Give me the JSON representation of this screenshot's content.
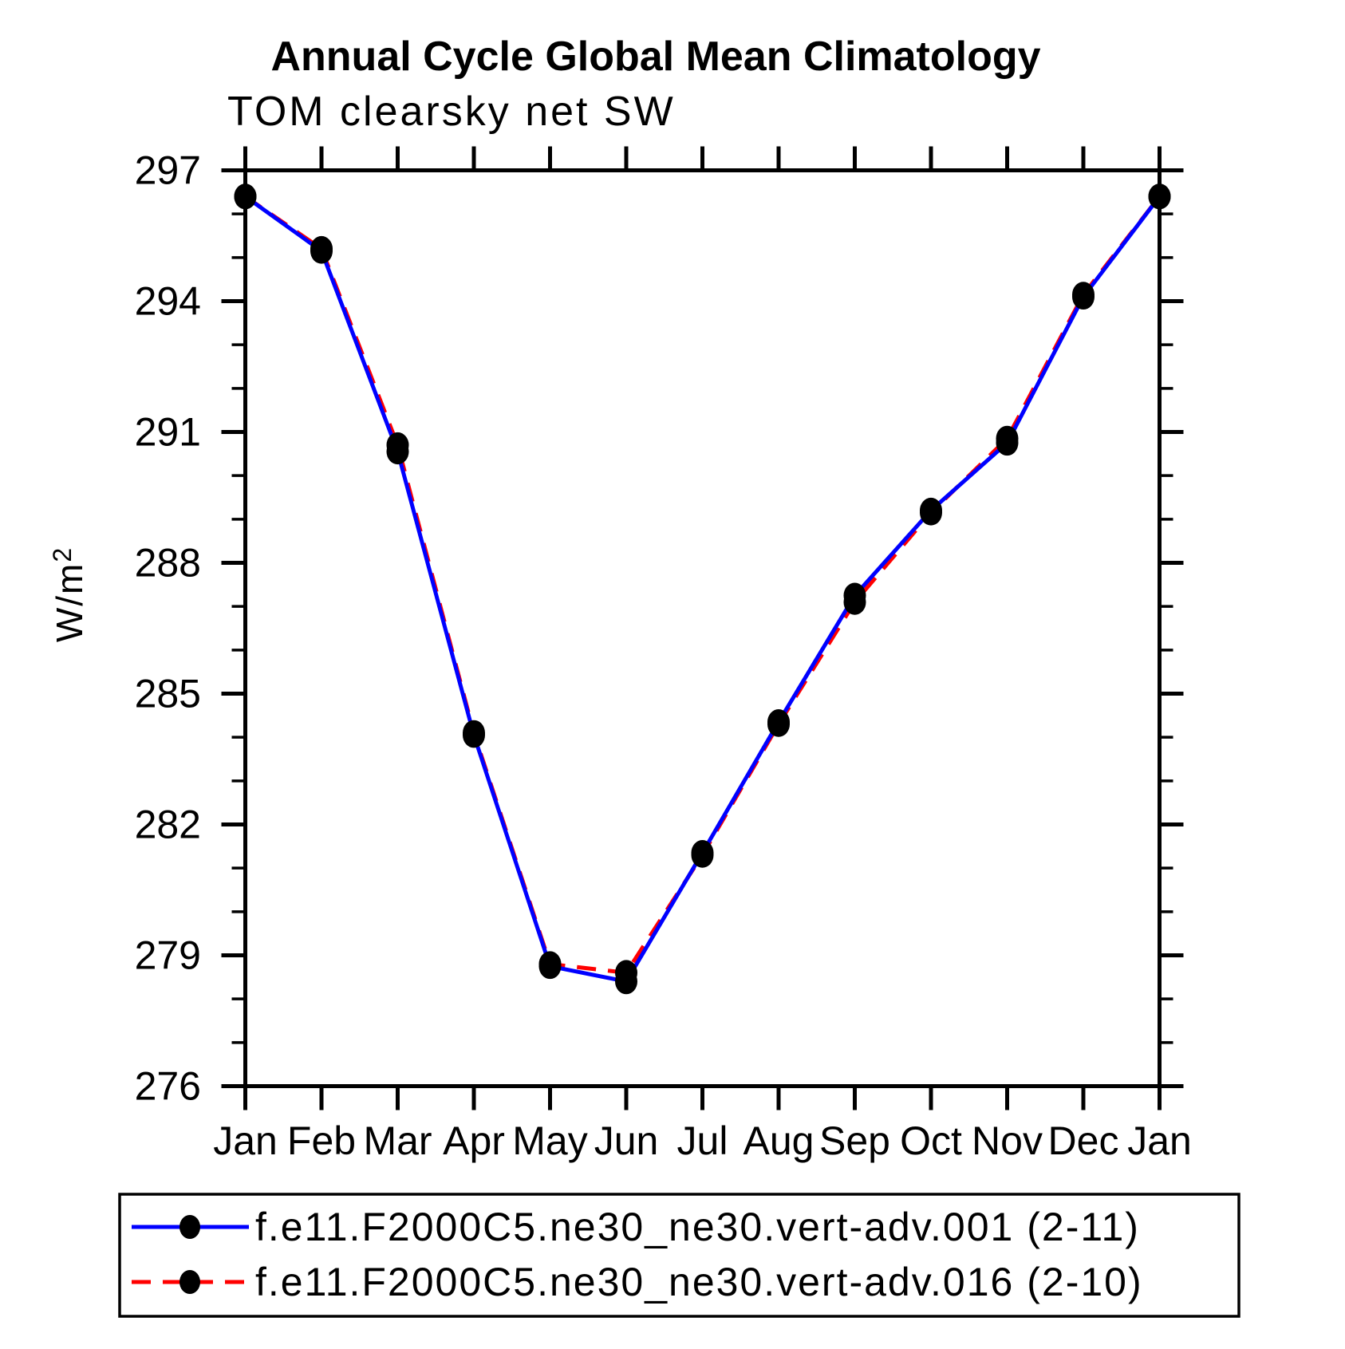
{
  "header": {
    "title": "Annual Cycle Global Mean Climatology",
    "subtitle": "TOM clearsky net SW"
  },
  "chart_data": {
    "type": "line",
    "title": "Annual Cycle Global Mean Climatology",
    "subtitle": "TOM clearsky net SW",
    "categories": [
      "Jan",
      "Feb",
      "Mar",
      "Apr",
      "May",
      "Jun",
      "Jul",
      "Aug",
      "Sep",
      "Oct",
      "Nov",
      "Dec",
      "Jan"
    ],
    "xlabel": "",
    "ylabel": {
      "base": "W/m",
      "superscript": "2"
    },
    "ylim": [
      276,
      297
    ],
    "ytick_major_step": 3,
    "ytick_minor_step": 1,
    "ytick_labels": [
      "276",
      "279",
      "282",
      "285",
      "288",
      "291",
      "294",
      "297"
    ],
    "grid": false,
    "legend_position": "bottom",
    "series": [
      {
        "name": "f.e11.F2000C5.ne30_ne30.vert-adv.001 (2-11)",
        "color": "#0000ff",
        "line_style": "solid",
        "marker": "filled-circle",
        "marker_color": "#000000",
        "values": [
          296.4,
          295.15,
          290.55,
          284.05,
          278.75,
          278.4,
          281.35,
          284.35,
          287.25,
          289.2,
          290.75,
          294.1,
          296.4
        ]
      },
      {
        "name": "f.e11.F2000C5.ne30_ne30.vert-adv.016 (2-10)",
        "color": "#ff0000",
        "line_style": "dashed",
        "marker": "filled-circle",
        "marker_color": "#000000",
        "values": [
          296.4,
          295.2,
          290.7,
          284.1,
          278.8,
          278.6,
          281.3,
          284.3,
          287.1,
          289.15,
          290.85,
          294.15,
          296.4
        ]
      }
    ]
  },
  "colors": {
    "background": "#ffffff",
    "axis": "#000000",
    "series1": "#0000ff",
    "series2": "#ff0000"
  }
}
